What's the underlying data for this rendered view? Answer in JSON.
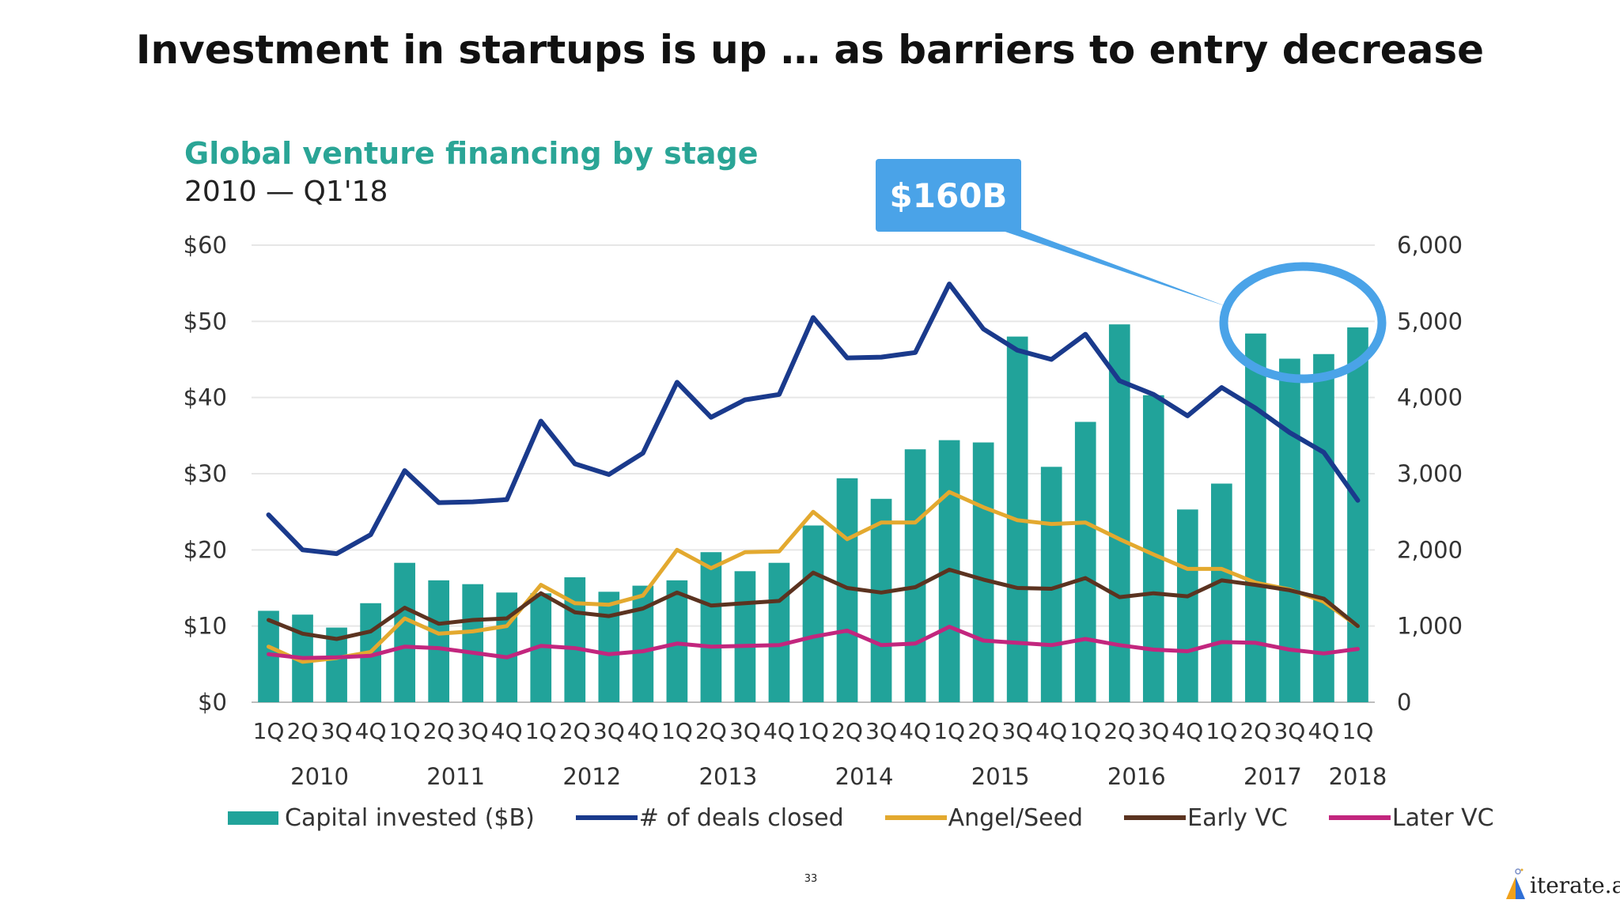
{
  "slide": {
    "title": "Investment in startups is up … as barriers to entry decrease",
    "page_number": "33",
    "brand": "iterate.ai"
  },
  "chart_data": {
    "type": "bar+line",
    "title": "Global venture financing by stage",
    "subtitle": "2010 — Q1'18",
    "callout": "$160B",
    "quarter_labels": [
      "1Q",
      "2Q",
      "3Q",
      "4Q",
      "1Q",
      "2Q",
      "3Q",
      "4Q",
      "1Q",
      "2Q",
      "3Q",
      "4Q",
      "1Q",
      "2Q",
      "3Q",
      "4Q",
      "1Q",
      "2Q",
      "3Q",
      "4Q",
      "1Q",
      "2Q",
      "3Q",
      "4Q",
      "1Q",
      "2Q",
      "3Q",
      "4Q",
      "1Q",
      "2Q",
      "3Q",
      "4Q",
      "1Q"
    ],
    "year_labels": [
      {
        "label": "2010",
        "start": 0,
        "end": 3
      },
      {
        "label": "2011",
        "start": 4,
        "end": 7
      },
      {
        "label": "2012",
        "start": 8,
        "end": 11
      },
      {
        "label": "2013",
        "start": 12,
        "end": 15
      },
      {
        "label": "2014",
        "start": 16,
        "end": 19
      },
      {
        "label": "2015",
        "start": 20,
        "end": 23
      },
      {
        "label": "2016",
        "start": 24,
        "end": 27
      },
      {
        "label": "2017",
        "start": 28,
        "end": 31
      },
      {
        "label": "2018",
        "start": 32,
        "end": 32
      }
    ],
    "y_left": {
      "min": 0,
      "max": 60,
      "ticks": [
        "$0",
        "$10",
        "$20",
        "$30",
        "$40",
        "$50",
        "$60"
      ]
    },
    "y_right": {
      "min": 0,
      "max": 6000,
      "ticks": [
        "0",
        "1,000",
        "2,000",
        "3,000",
        "4,000",
        "5,000",
        "6,000"
      ]
    },
    "bar_series": {
      "name": "Capital invested ($B)",
      "color": "#21a39a",
      "values": [
        12,
        11.5,
        9.8,
        13,
        18.3,
        16,
        15.5,
        14.4,
        14.3,
        16.4,
        14.5,
        15.3,
        16,
        19.7,
        17.2,
        18.3,
        23.2,
        29.4,
        26.7,
        33.2,
        34.4,
        34.1,
        48,
        30.9,
        36.8,
        49.6,
        40.3,
        25.3,
        28.7,
        48.4,
        45.1,
        45.7,
        49.2
      ]
    },
    "line_series": [
      {
        "name": "# of deals closed",
        "color": "#1a3a8c",
        "axis": "right",
        "values": [
          2460,
          2000,
          1950,
          2200,
          3040,
          2620,
          2630,
          2660,
          3690,
          3130,
          2990,
          3270,
          4200,
          3740,
          3970,
          4040,
          5050,
          4520,
          4530,
          4590,
          5490,
          4900,
          4620,
          4500,
          4830,
          4220,
          4040,
          3760,
          4130,
          3860,
          3540,
          3280,
          2650
        ]
      },
      {
        "name": "Angel/Seed",
        "color": "#e3a92f",
        "axis": "left",
        "values": [
          7.3,
          5.3,
          5.8,
          6.6,
          11,
          9,
          9.3,
          10,
          15.4,
          13,
          12.8,
          14,
          20,
          17.6,
          19.7,
          19.8,
          25,
          21.4,
          23.6,
          23.6,
          27.6,
          25.6,
          23.9,
          23.4,
          23.6,
          21.4,
          19.4,
          17.5,
          17.5,
          15.7,
          14.8,
          13.2,
          10
        ]
      },
      {
        "name": "Early VC",
        "color": "#5b3320",
        "axis": "left",
        "values": [
          10.8,
          9,
          8.3,
          9.3,
          12.4,
          10.3,
          10.8,
          11,
          14.3,
          11.8,
          11.3,
          12.3,
          14.4,
          12.7,
          13,
          13.3,
          17,
          15,
          14.4,
          15.1,
          17.4,
          16.1,
          15,
          14.9,
          16.3,
          13.8,
          14.3,
          13.9,
          16,
          15.4,
          14.7,
          13.6,
          10
        ]
      },
      {
        "name": "Later VC",
        "color": "#c2267e",
        "axis": "left",
        "values": [
          6.3,
          5.8,
          5.9,
          6.1,
          7.3,
          7.1,
          6.5,
          5.9,
          7.4,
          7.1,
          6.3,
          6.7,
          7.7,
          7.3,
          7.4,
          7.5,
          8.6,
          9.4,
          7.5,
          7.7,
          9.9,
          8.1,
          7.8,
          7.5,
          8.3,
          7.5,
          6.9,
          6.7,
          7.9,
          7.8,
          6.9,
          6.4,
          7
        ]
      }
    ],
    "legend": [
      {
        "label": "Capital invested ($B)",
        "kind": "bar",
        "color": "#21a39a"
      },
      {
        "label": "# of deals closed",
        "kind": "line",
        "color": "#1a3a8c"
      },
      {
        "label": "Angel/Seed",
        "kind": "line",
        "color": "#e3a92f"
      },
      {
        "label": "Early VC",
        "kind": "line",
        "color": "#5b3320"
      },
      {
        "label": "Later VC",
        "kind": "line",
        "color": "#c2267e"
      }
    ],
    "highlight_color": "#4aa3e8"
  }
}
